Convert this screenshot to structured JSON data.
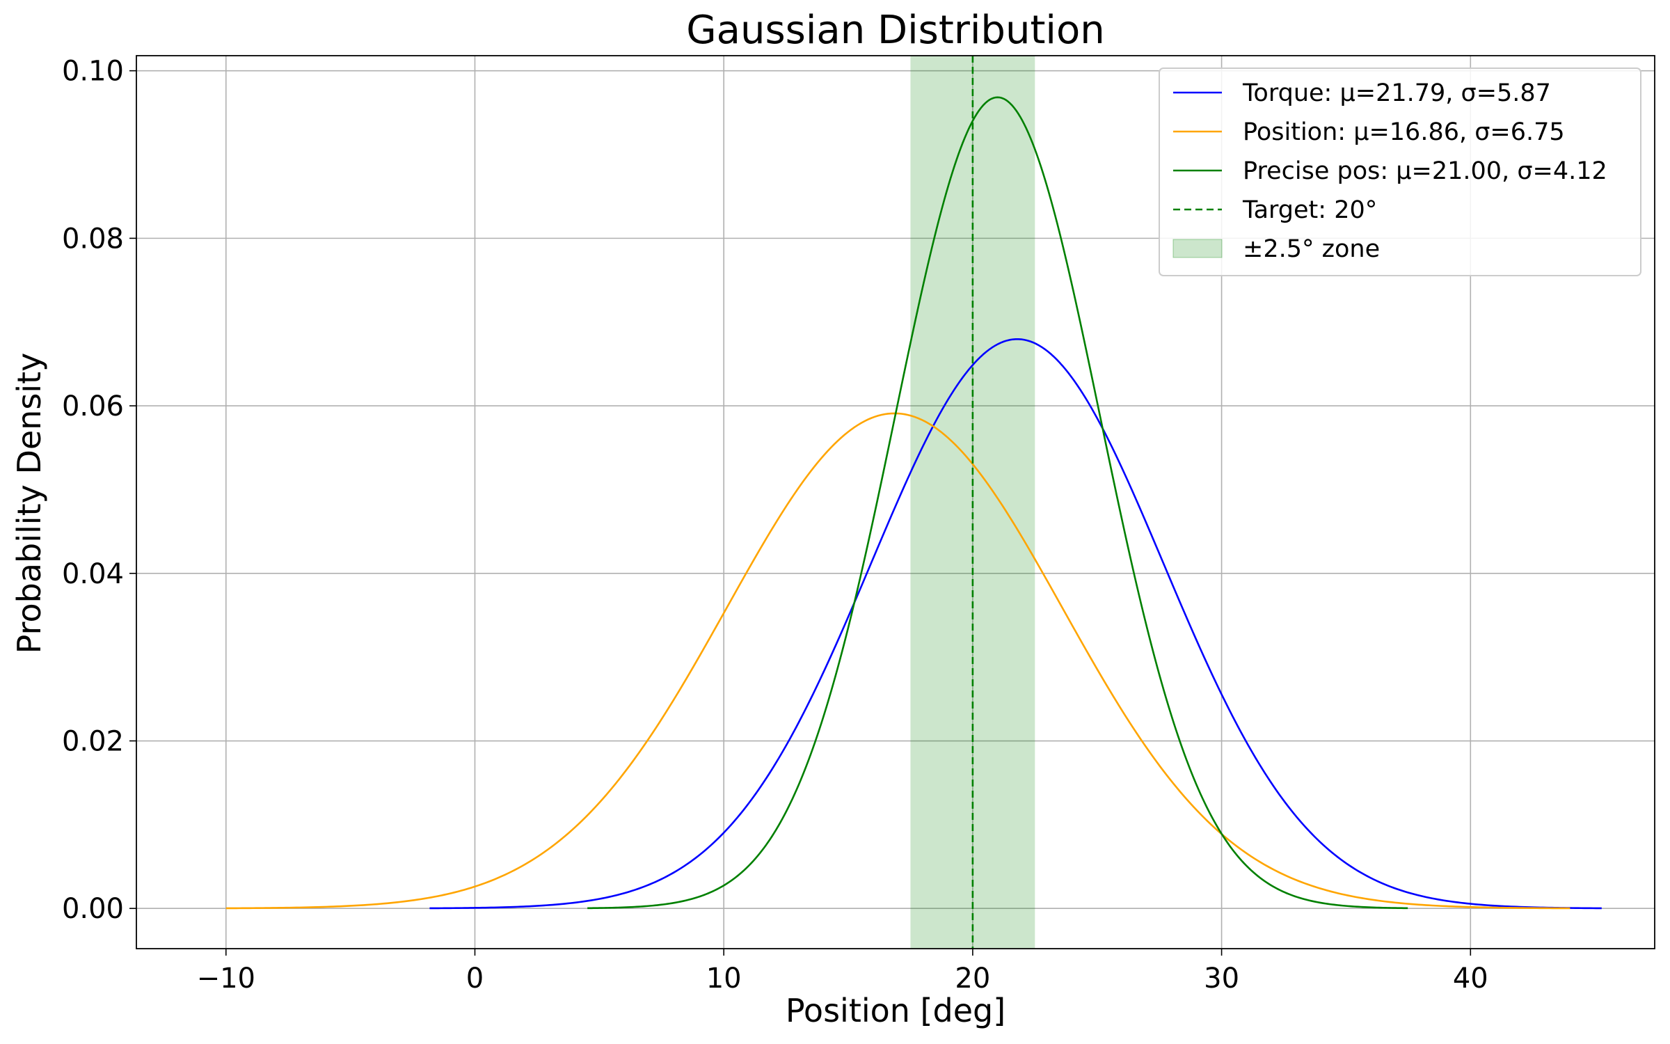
{
  "chart_data": {
    "type": "line",
    "title": "Gaussian Distribution",
    "xlabel": "Position [deg]",
    "ylabel": "Probability Density",
    "xlim": [
      -13.6,
      47.4
    ],
    "ylim": [
      -0.0048,
      0.1018
    ],
    "xticks": [
      -10,
      0,
      10,
      20,
      30,
      40
    ],
    "xtick_labels": [
      "−10",
      "0",
      "10",
      "20",
      "30",
      "40"
    ],
    "yticks": [
      0.0,
      0.02,
      0.04,
      0.06,
      0.08,
      0.1
    ],
    "ytick_labels": [
      "0.00",
      "0.02",
      "0.04",
      "0.06",
      "0.08",
      "0.10"
    ],
    "grid": true,
    "legend_position": "top-right",
    "series": [
      {
        "name": "Torque",
        "legend_text": "Torque: μ=21.79, σ=5.87",
        "mu": 21.79,
        "sigma": 5.87,
        "x_range": [
          -1.82,
          45.27
        ],
        "color": "#0000ff",
        "style": "solid"
      },
      {
        "name": "Position",
        "legend_text": "Position: μ=16.86, σ=6.75",
        "mu": 16.86,
        "sigma": 6.75,
        "x_range": [
          -10.0,
          44.0
        ],
        "color": "#ffa500",
        "style": "solid"
      },
      {
        "name": "Precise pos",
        "legend_text": "Precise pos: μ=21.00, σ=4.12",
        "mu": 21.0,
        "sigma": 4.12,
        "x_range": [
          4.52,
          37.48
        ],
        "color": "#008000",
        "style": "solid"
      }
    ],
    "target": {
      "legend_text": "Target: 20°",
      "x": 20,
      "color": "#008000",
      "style": "dashed"
    },
    "zone": {
      "legend_text": "±2.5° zone",
      "x_range": [
        17.5,
        22.5
      ],
      "color": "#008000",
      "opacity": 0.2
    }
  }
}
